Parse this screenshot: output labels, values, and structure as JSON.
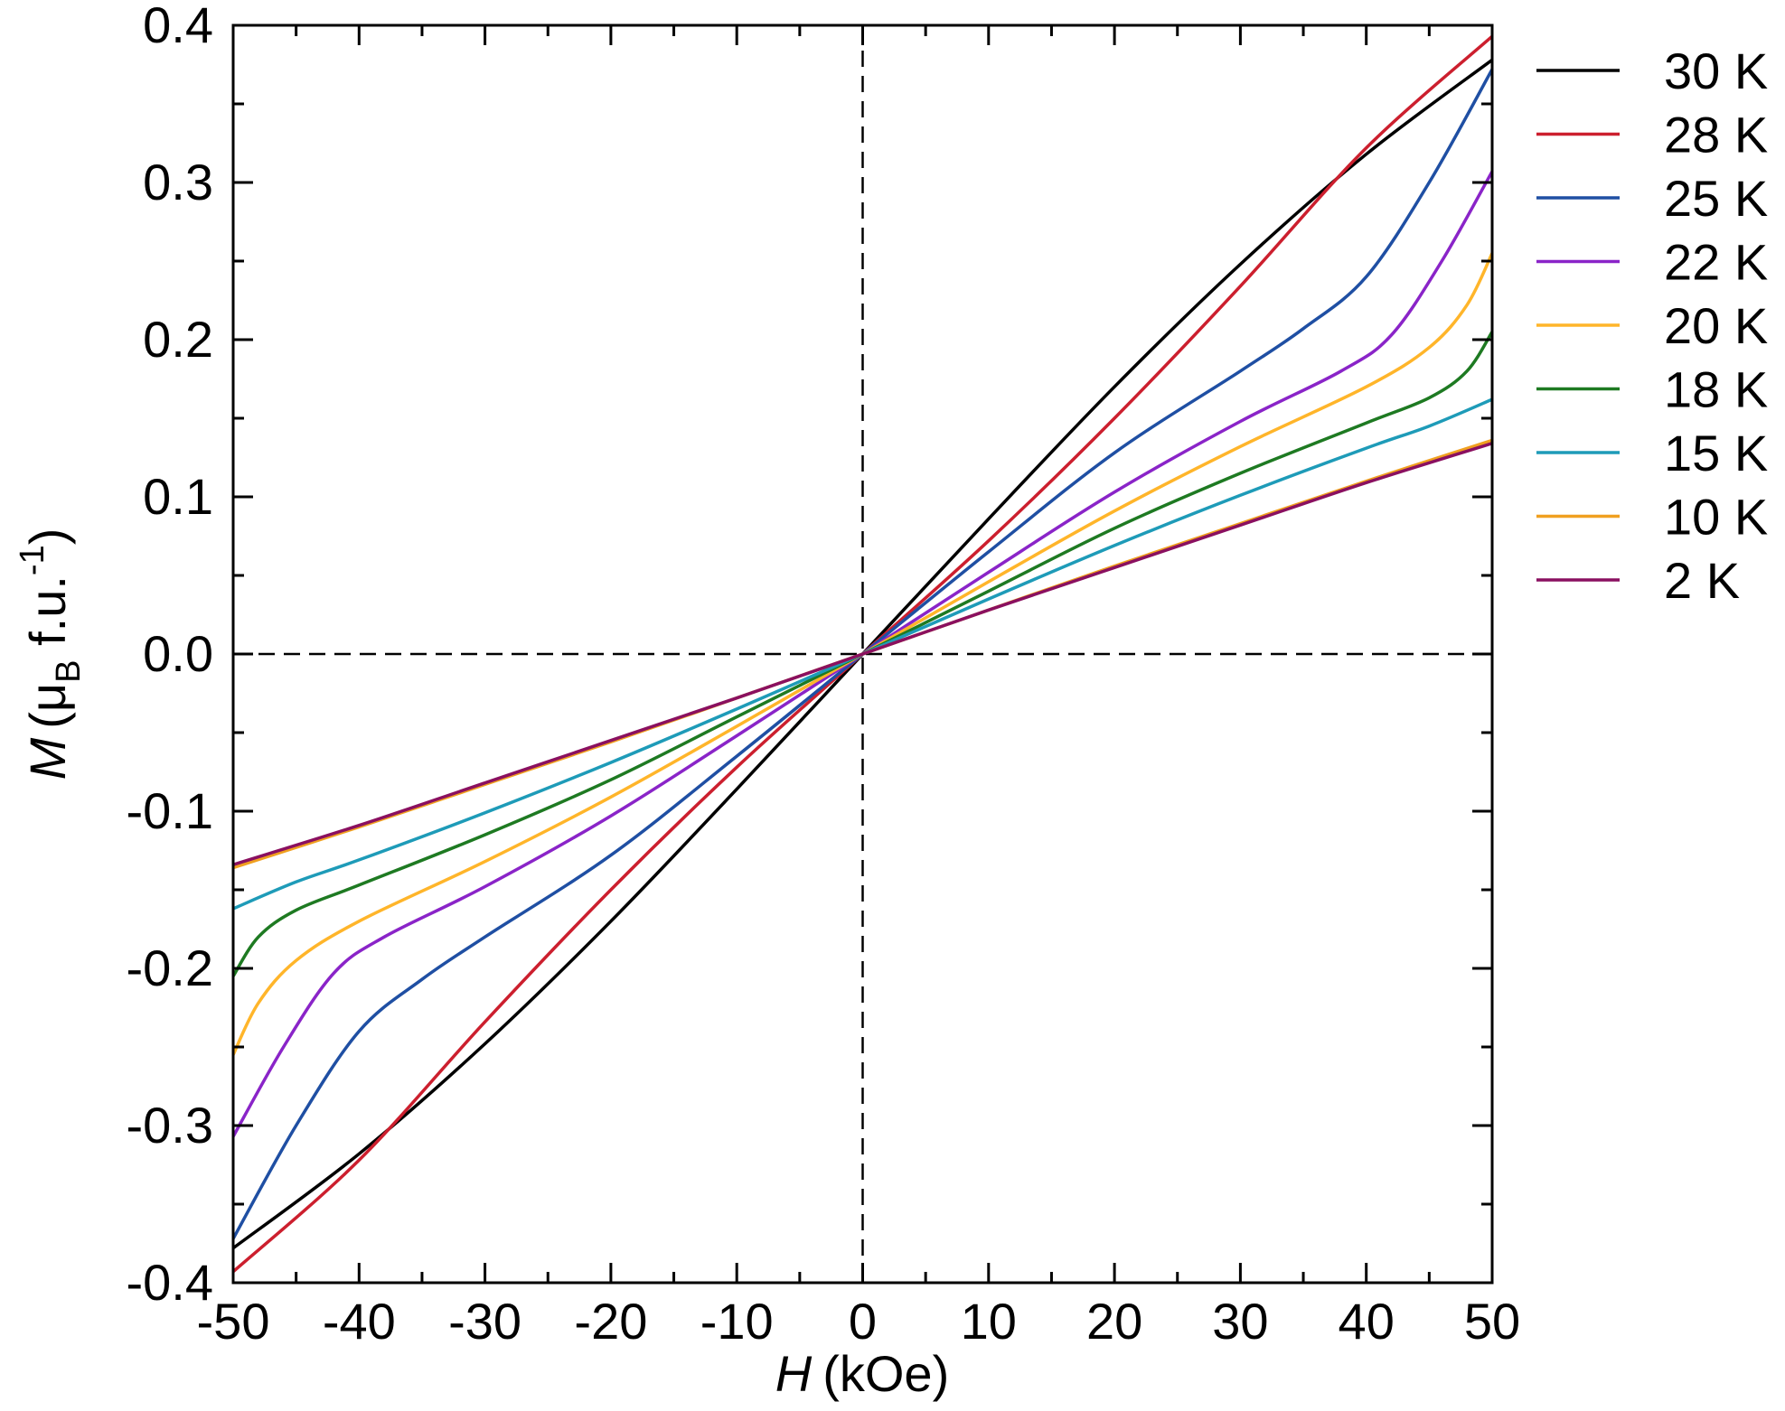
{
  "chart_data": {
    "type": "line",
    "title": "",
    "xlabel": {
      "symbol": "H",
      "unit": "(kOe)"
    },
    "ylabel": {
      "symbol": "M",
      "open": "(μ",
      "sub": "B",
      "mid": " f.u.",
      "sup": "-1",
      "close": ")"
    },
    "xlim": [
      -50,
      50
    ],
    "ylim": [
      -0.4,
      0.4
    ],
    "xticks": [
      -50,
      -40,
      -30,
      -20,
      -10,
      0,
      10,
      20,
      30,
      40,
      50
    ],
    "xtick_labels": [
      "-50",
      "-40",
      "-30",
      "-20",
      "-10",
      "0",
      "10",
      "20",
      "30",
      "40",
      "50"
    ],
    "yticks": [
      -0.4,
      -0.3,
      -0.2,
      -0.1,
      0.0,
      0.1,
      0.2,
      0.3,
      0.4
    ],
    "ytick_labels": [
      "-0.4",
      "-0.3",
      "-0.2",
      "-0.1",
      "0.0",
      "0.1",
      "0.2",
      "0.3",
      "0.4"
    ],
    "reference_lines": {
      "x0": true,
      "y0": true,
      "style": "dashed"
    },
    "grid": false,
    "legend_position": "right-outside-top",
    "series": [
      {
        "name": "30 K",
        "color": "#000000",
        "x": [
          -50,
          -40,
          -30,
          -20,
          -10,
          0,
          10,
          20,
          30,
          40,
          50
        ],
        "y": [
          -0.378,
          -0.318,
          -0.248,
          -0.17,
          -0.086,
          0.0,
          0.086,
          0.17,
          0.248,
          0.318,
          0.378
        ]
      },
      {
        "name": "28 K",
        "color": "#cc1f2e",
        "x": [
          -50,
          -40,
          -30,
          -20,
          -10,
          0,
          10,
          20,
          30,
          40,
          50
        ],
        "y": [
          -0.393,
          -0.322,
          -0.234,
          -0.15,
          -0.072,
          0.0,
          0.072,
          0.15,
          0.234,
          0.322,
          0.393
        ]
      },
      {
        "name": "25 K",
        "color": "#1f4fa3",
        "x": [
          -50,
          -45,
          -40,
          -35,
          -30,
          -20,
          -10,
          0,
          10,
          20,
          30,
          35,
          40,
          45,
          50
        ],
        "y": [
          -0.372,
          -0.3,
          -0.24,
          -0.207,
          -0.18,
          -0.128,
          -0.065,
          0.0,
          0.065,
          0.128,
          0.18,
          0.207,
          0.24,
          0.3,
          0.372
        ]
      },
      {
        "name": "22 K",
        "color": "#8a24c8",
        "x": [
          -50,
          -46,
          -42,
          -38,
          -30,
          -20,
          -10,
          0,
          10,
          20,
          30,
          38,
          42,
          46,
          50
        ],
        "y": [
          -0.307,
          -0.25,
          -0.203,
          -0.18,
          -0.148,
          -0.103,
          -0.052,
          0.0,
          0.052,
          0.103,
          0.148,
          0.18,
          0.203,
          0.25,
          0.307
        ]
      },
      {
        "name": "20 K",
        "color": "#ffb52a",
        "x": [
          -50,
          -48,
          -45,
          -40,
          -30,
          -20,
          -10,
          0,
          10,
          20,
          30,
          40,
          45,
          48,
          50
        ],
        "y": [
          -0.255,
          -0.222,
          -0.195,
          -0.17,
          -0.132,
          -0.091,
          -0.046,
          0.0,
          0.046,
          0.091,
          0.132,
          0.17,
          0.195,
          0.222,
          0.255
        ]
      },
      {
        "name": "18 K",
        "color": "#1e7a22",
        "x": [
          -50,
          -48,
          -45,
          -40,
          -30,
          -20,
          -10,
          0,
          10,
          20,
          30,
          40,
          45,
          48,
          50
        ],
        "y": [
          -0.205,
          -0.18,
          -0.163,
          -0.147,
          -0.115,
          -0.08,
          -0.04,
          0.0,
          0.04,
          0.08,
          0.115,
          0.147,
          0.163,
          0.18,
          0.205
        ]
      },
      {
        "name": "15 K",
        "color": "#1e9bb8",
        "x": [
          -50,
          -45,
          -40,
          -30,
          -20,
          -10,
          0,
          10,
          20,
          30,
          40,
          45,
          50
        ],
        "y": [
          -0.162,
          -0.145,
          -0.131,
          -0.101,
          -0.069,
          -0.035,
          0.0,
          0.035,
          0.069,
          0.101,
          0.131,
          0.145,
          0.162
        ]
      },
      {
        "name": "10 K",
        "color": "#f0a020",
        "x": [
          -50,
          -40,
          -30,
          -20,
          -10,
          0,
          10,
          20,
          30,
          40,
          50
        ],
        "y": [
          -0.136,
          -0.11,
          -0.083,
          -0.056,
          -0.028,
          0.0,
          0.028,
          0.056,
          0.083,
          0.11,
          0.136
        ]
      },
      {
        "name": "2 K",
        "color": "#8a1060",
        "x": [
          -50,
          -40,
          -30,
          -20,
          -10,
          0,
          10,
          20,
          30,
          40,
          50
        ],
        "y": [
          -0.134,
          -0.109,
          -0.082,
          -0.055,
          -0.028,
          0.0,
          0.028,
          0.055,
          0.082,
          0.109,
          0.134
        ]
      }
    ]
  }
}
